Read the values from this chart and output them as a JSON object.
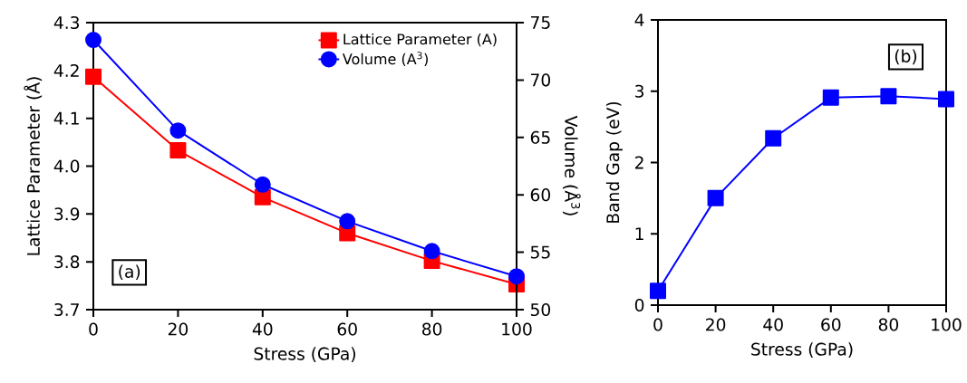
{
  "chart_data": [
    {
      "type": "line",
      "xlabel": "Stress (GPa)",
      "ylabel": "Lattice Parameter (Å)",
      "y2label": "Volume (Å$^{3}$)",
      "x": [
        0,
        20,
        40,
        60,
        80,
        100
      ],
      "xlim": [
        0,
        100
      ],
      "xticks": [
        0,
        20,
        40,
        60,
        80,
        100
      ],
      "ylim": [
        3.7,
        4.3
      ],
      "yticks": [
        3.7,
        3.8,
        3.9,
        {
          "value": 4.0,
          "label": "4.0"
        },
        4.1,
        4.2,
        4.3
      ],
      "y2lim": [
        50,
        75
      ],
      "y2ticks": [
        50,
        55,
        60,
        65,
        70,
        75
      ],
      "legend": "top right",
      "annotations": [
        "(a)"
      ],
      "series": [
        {
          "name": "Lattice Parameter (A)",
          "color": "#ff0000",
          "marker": "square",
          "values": [
            4.187,
            4.033,
            3.935,
            3.86,
            3.802,
            3.753
          ]
        },
        {
          "name": "Volume (A$^{3}$)",
          "color": "#0000ff",
          "marker": "circle",
          "axis": "y2",
          "values": [
            73.5,
            65.6,
            60.9,
            57.7,
            55.1,
            52.9
          ]
        }
      ]
    },
    {
      "type": "line",
      "xlabel": "Stress (GPa)",
      "ylabel": "Band Gap (eV)",
      "x": [
        0,
        20,
        40,
        60,
        80,
        100
      ],
      "xlim": [
        0,
        100
      ],
      "xticks": [
        0,
        20,
        40,
        60,
        80,
        100
      ],
      "ylim": [
        0,
        4
      ],
      "yticks": [
        0,
        1,
        2,
        3,
        4
      ],
      "annotations": [
        "(b)"
      ],
      "series": [
        {
          "color": "#0000ff",
          "marker": "square",
          "values": [
            0.2,
            1.5,
            2.34,
            2.91,
            2.93,
            2.89
          ]
        }
      ]
    }
  ]
}
